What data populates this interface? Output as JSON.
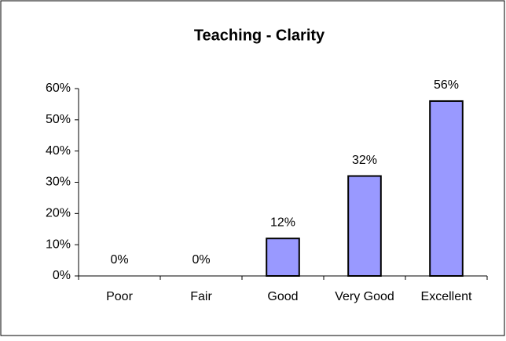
{
  "chart_data": {
    "type": "bar",
    "title": "Teaching - Clarity",
    "categories": [
      "Poor",
      "Fair",
      "Good",
      "Very Good",
      "Excellent"
    ],
    "values": [
      0,
      0,
      12,
      32,
      56
    ],
    "value_labels": [
      "0%",
      "0%",
      "12%",
      "32%",
      "56%"
    ],
    "color": "#9999ff",
    "ylim": [
      0,
      60
    ],
    "yticks": [
      {
        "value": 0,
        "label": "0%"
      },
      {
        "value": 10,
        "label": "10%"
      },
      {
        "value": 20,
        "label": "20%"
      },
      {
        "value": 30,
        "label": "30%"
      },
      {
        "value": 40,
        "label": "40%"
      },
      {
        "value": 50,
        "label": "50%"
      },
      {
        "value": 60,
        "label": "60%"
      }
    ],
    "grid": false
  }
}
